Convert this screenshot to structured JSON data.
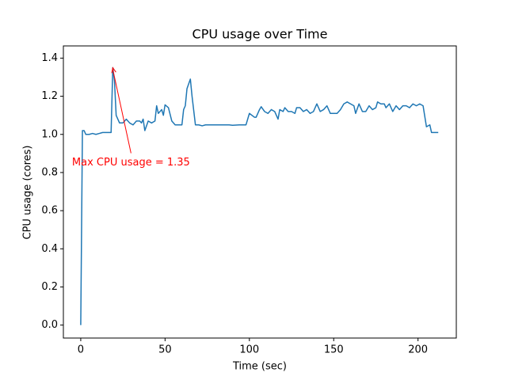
{
  "chart_data": {
    "type": "line",
    "title": "CPU usage over Time",
    "x_label": "Time (sec)",
    "y_label": "CPU usage (cores)",
    "x": [
      0,
      1,
      2,
      3,
      5,
      7,
      9,
      11,
      13,
      15,
      16,
      18,
      19,
      20,
      21,
      23,
      25,
      27,
      29,
      31,
      33,
      35,
      36,
      37,
      38,
      40,
      42,
      44,
      45,
      46,
      48,
      49,
      50,
      52,
      54,
      56,
      60,
      61,
      62,
      63,
      65,
      66,
      68,
      70,
      72,
      74,
      80,
      84,
      88,
      90,
      94,
      98,
      100,
      103,
      104,
      106,
      107,
      109,
      111,
      113,
      115,
      117,
      118,
      120,
      121,
      123,
      125,
      127,
      128,
      130,
      132,
      134,
      136,
      138,
      140,
      142,
      144,
      146,
      148,
      150,
      152,
      154,
      156,
      158,
      160,
      162,
      163,
      165,
      167,
      169,
      171,
      173,
      175,
      176,
      178,
      180,
      181,
      183,
      185,
      187,
      189,
      191,
      193,
      195,
      197,
      199,
      201,
      203,
      205,
      207,
      208,
      212
    ],
    "values": [
      0.0,
      1.02,
      1.02,
      1.0,
      1.0,
      1.005,
      1.0,
      1.005,
      1.01,
      1.01,
      1.01,
      1.01,
      1.35,
      1.28,
      1.1,
      1.06,
      1.06,
      1.08,
      1.06,
      1.05,
      1.07,
      1.07,
      1.06,
      1.08,
      1.02,
      1.07,
      1.06,
      1.07,
      1.15,
      1.11,
      1.13,
      1.1,
      1.155,
      1.14,
      1.07,
      1.05,
      1.05,
      1.13,
      1.15,
      1.24,
      1.29,
      1.2,
      1.05,
      1.05,
      1.045,
      1.05,
      1.05,
      1.05,
      1.05,
      1.048,
      1.05,
      1.05,
      1.11,
      1.09,
      1.09,
      1.13,
      1.145,
      1.12,
      1.11,
      1.13,
      1.12,
      1.08,
      1.13,
      1.12,
      1.14,
      1.12,
      1.12,
      1.11,
      1.14,
      1.14,
      1.12,
      1.13,
      1.11,
      1.12,
      1.16,
      1.12,
      1.13,
      1.15,
      1.11,
      1.11,
      1.11,
      1.13,
      1.16,
      1.17,
      1.16,
      1.15,
      1.11,
      1.16,
      1.12,
      1.12,
      1.15,
      1.13,
      1.14,
      1.17,
      1.16,
      1.16,
      1.14,
      1.16,
      1.12,
      1.15,
      1.13,
      1.15,
      1.15,
      1.14,
      1.16,
      1.15,
      1.16,
      1.15,
      1.04,
      1.05,
      1.01,
      1.01
    ],
    "color": "#1f77b4",
    "annotation": {
      "text": "Max CPU usage = 1.35",
      "color": "#ff0000",
      "point": 12
    },
    "xlim": [
      -10.3,
      222.7
    ],
    "ylim": [
      -0.068,
      1.464
    ],
    "xticks": [
      0,
      50,
      100,
      150,
      200
    ],
    "yticks": [
      {
        "value": 0,
        "label": "0.0"
      },
      0.2,
      0.4,
      0.6,
      0.8,
      {
        "value": 1,
        "label": "1.0"
      },
      1.2,
      1.4
    ]
  }
}
